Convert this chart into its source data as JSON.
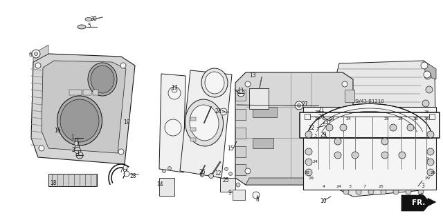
{
  "background_color": "#ffffff",
  "fig_width": 6.4,
  "fig_height": 3.19,
  "dpi": 100,
  "diagram_code": "SV43-B1210",
  "line_color": "#1a1a1a",
  "fill_light": "#e8e8e8",
  "fill_mid": "#d0d0d0",
  "fill_dark": "#b8b8b8",
  "fill_white": "#f5f5f5"
}
